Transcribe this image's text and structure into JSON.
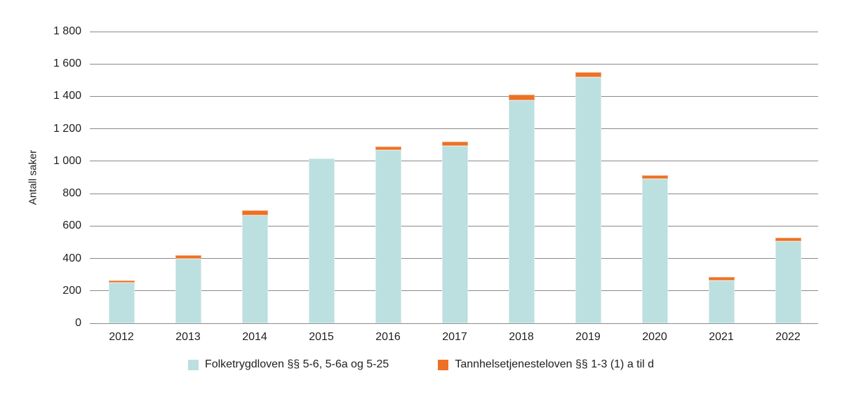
{
  "chart_data": {
    "type": "bar",
    "stacked": true,
    "title": "",
    "ylabel": "Antall saker",
    "xlabel": "",
    "categories": [
      "2012",
      "2013",
      "2014",
      "2015",
      "2016",
      "2017",
      "2018",
      "2019",
      "2020",
      "2021",
      "2022"
    ],
    "series": [
      {
        "name": "Folketrygdloven §§ 5-6, 5-6a og 5-25",
        "color": "#bcdfe0",
        "border_color": "#d9eeee",
        "values": [
          250,
          400,
          665,
          1015,
          1070,
          1095,
          1375,
          1520,
          890,
          265,
          505
        ]
      },
      {
        "name": "Tannhelsetjenesteloven §§ 1-3 (1) a til d",
        "color": "#ed7124",
        "border_color": "#f5a571",
        "values": [
          15,
          20,
          30,
          0,
          20,
          25,
          35,
          30,
          25,
          20,
          25
        ]
      }
    ],
    "totals": [
      265,
      420,
      695,
      1015,
      1090,
      1120,
      1410,
      1550,
      915,
      285,
      530
    ],
    "ylim": [
      0,
      1800
    ],
    "ytick_step": 200,
    "ytick_labels": [
      "0",
      "200",
      "400",
      "600",
      "800",
      "1 000",
      "1 200",
      "1 400",
      "1 600",
      "1 800"
    ],
    "grid": true,
    "gridline_color": "#8a8a8a",
    "text_color": "#1f1f1f",
    "legend_position": "bottom"
  }
}
